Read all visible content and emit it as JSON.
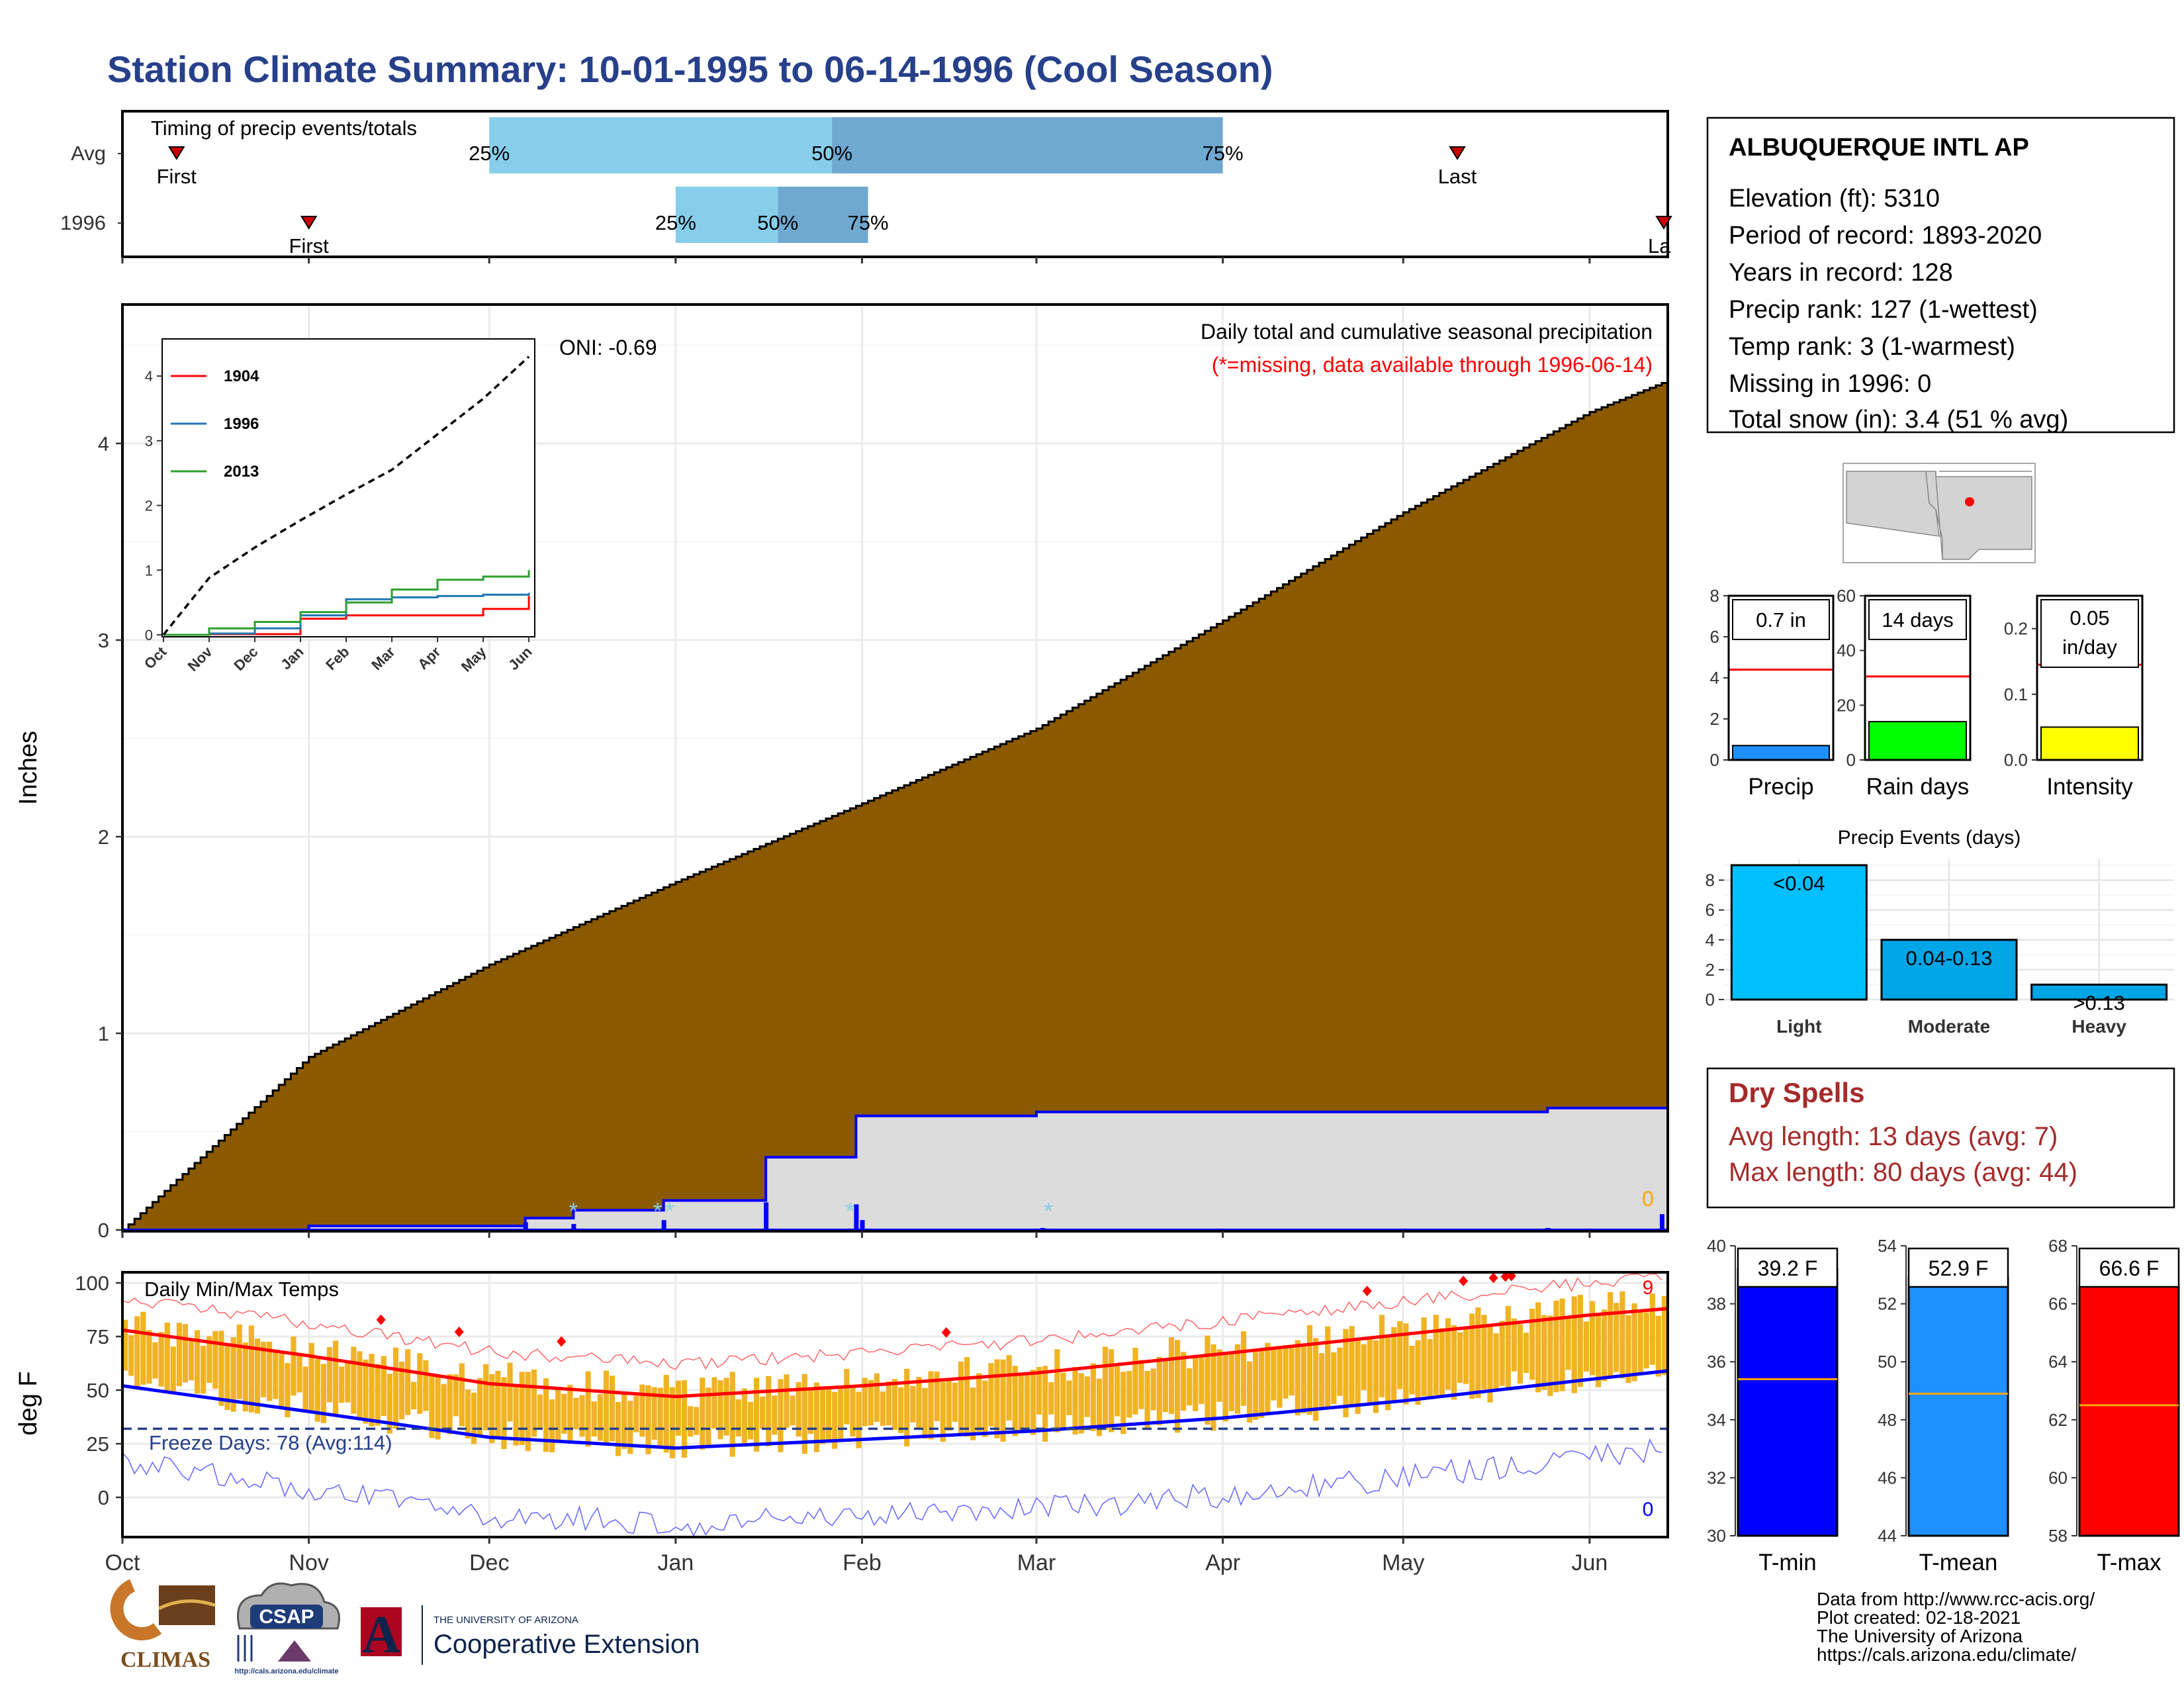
{
  "title": "Station Climate Summary: 10-01-1995 to 06-14-1996 (Cool Season)",
  "colors": {
    "title": "#27408b",
    "brown": "#8b5a00",
    "light_gray": "#dcdcdc",
    "blue": "#0000ff",
    "light_blue": "#87ceeb",
    "mid_blue": "#6fa8d0",
    "red": "#ff0000",
    "orange": "#ffa500",
    "gold": "#f0b323",
    "dark_red": "#a52a2a",
    "green": "#00ff00",
    "yellow": "#ffff00",
    "dodger": "#1e90ff",
    "deep_sky": "#00bfff"
  },
  "timing": {
    "title": "Timing of precip events/totals",
    "rows": [
      {
        "label": "Avg",
        "first_label": "First",
        "last_label": "Last",
        "first": "1995-10-10",
        "last": "1996-05-10",
        "p25": "1995-12-01",
        "p50": "1996-01-27",
        "p75": "1996-04-01"
      },
      {
        "label": "1996",
        "first_label": "First",
        "last_label": "Last",
        "first": "1995-11-01",
        "last": "1996-06-14",
        "p25": "1996-01-01",
        "p50": "1996-01-18",
        "p75": "1996-02-02"
      }
    ],
    "pct_labels": [
      "25%",
      "50%",
      "75%"
    ]
  },
  "main": {
    "ylabel": "Inches",
    "caption": "Daily total and cumulative seasonal precipitation",
    "missing_note": "(*=missing, data available through 1996-06-14)",
    "oni": "ONI: -0.69",
    "missing_count_label": "0",
    "y_ticks": [
      "0",
      "1",
      "2",
      "3",
      "4"
    ],
    "x_ticks": [
      "Oct",
      "Nov",
      "Dec",
      "Jan",
      "Feb",
      "Mar",
      "Apr",
      "May",
      "Jun"
    ]
  },
  "inset": {
    "legend": [
      "1904",
      "1996",
      "2013"
    ],
    "legend_colors": [
      "#ff0000",
      "#1f77b4",
      "#2ca02c"
    ],
    "y_ticks": [
      "0",
      "1",
      "2",
      "3",
      "4"
    ],
    "x_ticks": [
      "Oct",
      "Nov",
      "Dec",
      "Jan",
      "Feb",
      "Mar",
      "Apr",
      "May",
      "Jun"
    ]
  },
  "temps": {
    "title": "Daily Min/Max Temps",
    "ylabel": "deg F",
    "freeze_label": "Freeze Days: 78 (Avg:114)",
    "max_count_label": "9",
    "min_count_label": "0",
    "y_ticks": [
      "0",
      "25",
      "50",
      "75",
      "100"
    ],
    "x_ticks": [
      "Oct",
      "Nov",
      "Dec",
      "Jan",
      "Feb",
      "Mar",
      "Apr",
      "May",
      "Jun"
    ]
  },
  "station": {
    "name": "ALBUQUERQUE INTL AP",
    "lines": [
      "Elevation (ft): 5310",
      "Period of record: 1893-2020",
      "Years in record: 128",
      "Precip rank: 127 (1-wettest)",
      "Temp rank: 3 (1-warmest)",
      "Missing in 1996: 0",
      "Total snow (in): 3.4 (51 % avg)"
    ]
  },
  "mini_bars": [
    {
      "label": "Precip",
      "value_label": "0.7 in",
      "value": 0.7,
      "avg": 4.4,
      "ymax": 8,
      "ticks": [
        "0",
        "2",
        "4",
        "6",
        "8"
      ],
      "color": "#1e90ff"
    },
    {
      "label": "Rain days",
      "value_label": "14 days",
      "value": 14,
      "avg": 30.5,
      "ymax": 60,
      "ticks": [
        "0",
        "20",
        "40",
        "60"
      ],
      "color": "#00ff00"
    },
    {
      "label": "Intensity",
      "value_label": "0.05 in/day",
      "value_line1": "0.05",
      "value_line2": "in/day",
      "value": 0.05,
      "avg": 0.145,
      "ymax": 0.25,
      "ticks": [
        "0.0",
        "0.1",
        "0.2"
      ],
      "color": "#ffff00"
    }
  ],
  "events": {
    "title": "Precip Events (days)",
    "categories": [
      "Light",
      "Moderate",
      "Heavy"
    ],
    "bar_labels": [
      "<0.04",
      "0.04-0.13",
      ">0.13"
    ],
    "values": [
      9,
      4,
      1
    ],
    "ticks": [
      "0",
      "2",
      "4",
      "6",
      "8"
    ]
  },
  "dry": {
    "title": "Dry Spells",
    "avg": "Avg length: 13 days (avg: 7)",
    "max": "Max length: 80 days (avg: 44)"
  },
  "temp_bars": [
    {
      "label": "T-min",
      "value_label": "39.2 F",
      "value": 39.2,
      "avg": 35.4,
      "ymin": 30,
      "ymax": 40,
      "ticks": [
        "30",
        "32",
        "34",
        "36",
        "38",
        "40"
      ],
      "color": "#0000ff"
    },
    {
      "label": "T-mean",
      "value_label": "52.9 F",
      "value": 52.9,
      "avg": 48.9,
      "ymin": 44,
      "ymax": 54,
      "ticks": [
        "44",
        "46",
        "48",
        "50",
        "52",
        "54"
      ],
      "color": "#1e90ff"
    },
    {
      "label": "T-max",
      "value_label": "66.6 F",
      "value": 66.6,
      "avg": 62.5,
      "ymin": 58,
      "ymax": 68,
      "ticks": [
        "58",
        "60",
        "62",
        "64",
        "66",
        "68"
      ],
      "color": "#ff0000"
    }
  ],
  "footer": {
    "lines": [
      "Data from http://www.rcc-acis.org/",
      "Plot created: 02-18-2021",
      "The University of Arizona",
      "https://cals.arizona.edu/climate/"
    ]
  },
  "logos": {
    "climas": "CLIMAS",
    "csap": "CSAP",
    "csap_url": "http://cals.arizona.edu/climate",
    "ua_small": "THE UNIVERSITY OF ARIZONA",
    "ua_big": "Cooperative Extension",
    "ua_letter": "A"
  },
  "chart_data": [
    {
      "type": "area",
      "title": "Daily total and cumulative seasonal precipitation",
      "ylabel": "Inches",
      "ylim": [
        0,
        4.7
      ],
      "x_range": [
        "1995-10-01",
        "1996-06-14"
      ],
      "series": [
        {
          "name": "Avg",
          "x": [
            "1995-10-01",
            "1995-11-01",
            "1995-12-01",
            "1996-01-01",
            "1996-02-01",
            "1996-03-01",
            "1996-04-01",
            "1996-05-01",
            "1996-06-01",
            "1996-06-14"
          ],
          "values": [
            0,
            0.88,
            1.35,
            1.77,
            2.17,
            2.55,
            3.1,
            3.65,
            4.16,
            4.32
          ]
        },
        {
          "name": "1996",
          "x": [
            "1995-10-01",
            "1995-11-01",
            "1995-12-07",
            "1995-12-15",
            "1995-12-30",
            "1996-01-16",
            "1996-01-31",
            "1996-03-01",
            "1996-05-25",
            "1996-06-13",
            "1996-06-14"
          ],
          "values": [
            0,
            0.02,
            0.06,
            0.1,
            0.15,
            0.37,
            0.58,
            0.6,
            0.62,
            0.62,
            0.7
          ]
        }
      ]
    },
    {
      "type": "line",
      "title": "Daily Min/Max Temps",
      "ylabel": "deg F",
      "x_range": [
        "1995-10-01",
        "1996-06-14"
      ],
      "ylim": [
        -20,
        105
      ],
      "series": [
        {
          "name": "Avg max",
          "x": [
            "1995-10-01",
            "1995-11-01",
            "1995-12-01",
            "1996-01-01",
            "1996-02-01",
            "1996-03-01",
            "1996-04-01",
            "1996-05-01",
            "1996-06-01",
            "1996-06-14"
          ],
          "values": [
            78,
            66,
            53,
            47,
            52,
            58,
            67,
            76,
            85,
            88
          ]
        },
        {
          "name": "Avg min",
          "x": [
            "1995-10-01",
            "1995-11-01",
            "1995-12-01",
            "1996-01-01",
            "1996-02-01",
            "1996-03-01",
            "1996-04-01",
            "1996-05-01",
            "1996-06-01",
            "1996-06-14"
          ],
          "values": [
            52,
            40,
            28,
            23,
            27,
            31,
            37,
            45,
            55,
            59
          ]
        },
        {
          "name": "Freeze",
          "x": [
            "1995-10-01",
            "1996-06-14"
          ],
          "values": [
            32,
            32
          ]
        }
      ]
    },
    {
      "type": "line",
      "title": "",
      "ylim": [
        0,
        4.5
      ],
      "x": [
        "Oct",
        "Nov",
        "Dec",
        "Jan",
        "Feb",
        "Mar",
        "Apr",
        "May",
        "Jun"
      ],
      "series": [
        {
          "name": "1904",
          "values": [
            0,
            0.01,
            0.01,
            0.25,
            0.3,
            0.3,
            0.3,
            0.4,
            0.6
          ]
        },
        {
          "name": "1996",
          "values": [
            0,
            0.02,
            0.1,
            0.3,
            0.55,
            0.58,
            0.6,
            0.62,
            0.65
          ]
        },
        {
          "name": "2013",
          "values": [
            0,
            0.1,
            0.2,
            0.35,
            0.5,
            0.7,
            0.85,
            0.9,
            1.0
          ]
        },
        {
          "name": "Avg",
          "values": [
            0,
            0.88,
            1.35,
            1.77,
            2.17,
            2.55,
            3.1,
            3.65,
            4.3
          ]
        }
      ]
    },
    {
      "type": "bar",
      "title": "Precip Events (days)",
      "categories": [
        "Light",
        "Moderate",
        "Heavy"
      ],
      "values": [
        9,
        4,
        1
      ],
      "ylim": [
        0,
        9
      ]
    },
    {
      "type": "bar",
      "categories": [
        "Precip",
        "Rain days",
        "Intensity"
      ],
      "values": [
        0.7,
        14,
        0.05
      ]
    },
    {
      "type": "bar",
      "categories": [
        "T-min",
        "T-mean",
        "T-max"
      ],
      "values": [
        39.2,
        52.9,
        66.6
      ]
    }
  ]
}
